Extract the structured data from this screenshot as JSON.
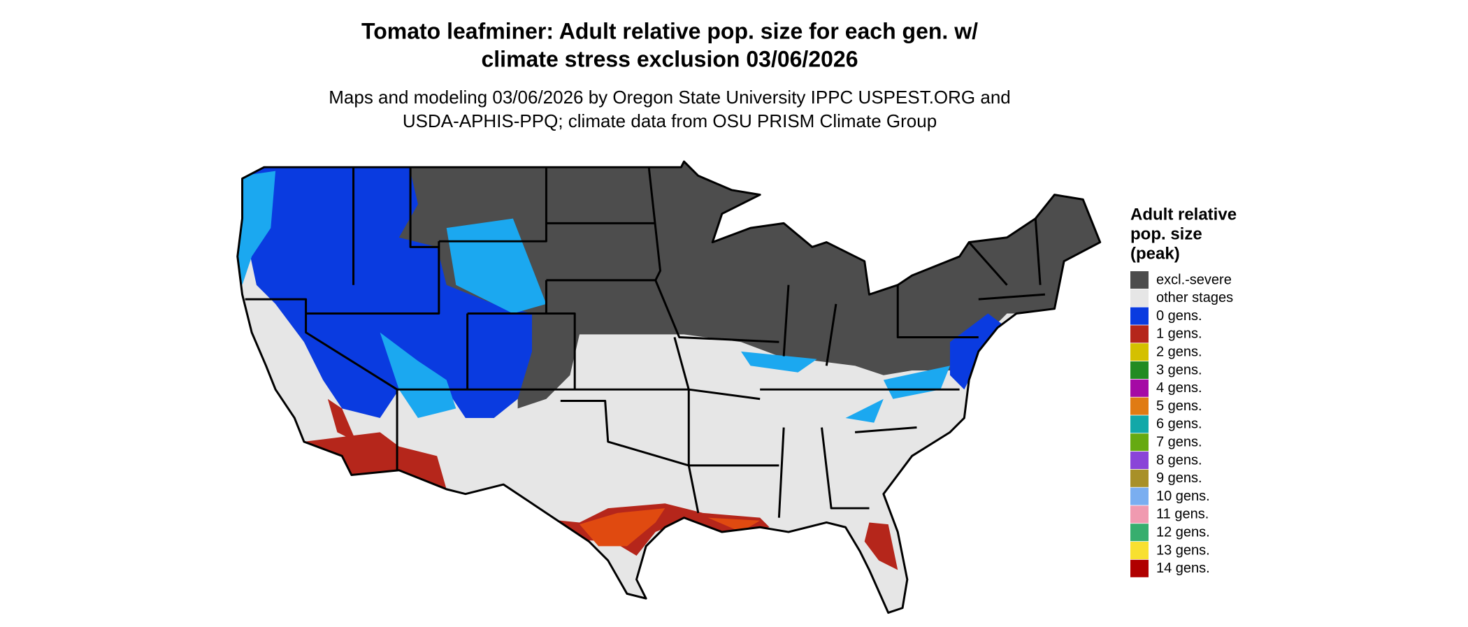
{
  "title": [
    "Tomato leafminer: Adult relative pop. size for each gen. w/",
    "climate stress exclusion 03/06/2026"
  ],
  "subtitle": [
    "Maps and modeling 03/06/2026 by Oregon State University IPPC USPEST.ORG and",
    "USDA-APHIS-PPQ; climate data from OSU PRISM Climate Group"
  ],
  "legend": {
    "title": [
      "Adult relative",
      "pop. size",
      "(peak)"
    ],
    "entries": [
      {
        "label": "excl.-severe",
        "color": "#4d4d4d"
      },
      {
        "label": "other stages",
        "color": "#e6e6e6"
      },
      {
        "label": "0 gens.",
        "color": "#0a3be0"
      },
      {
        "label": "1 gens.",
        "color": "#b5261b"
      },
      {
        "label": "2 gens.",
        "color": "#d4c000"
      },
      {
        "label": "3 gens.",
        "color": "#228b22"
      },
      {
        "label": "4 gens.",
        "color": "#a50aa5"
      },
      {
        "label": "5 gens.",
        "color": "#e07b13"
      },
      {
        "label": "6 gens.",
        "color": "#12a8a8"
      },
      {
        "label": "7 gens.",
        "color": "#66aa11"
      },
      {
        "label": "8 gens.",
        "color": "#8a44d8"
      },
      {
        "label": "9 gens.",
        "color": "#a89028"
      },
      {
        "label": "10 gens.",
        "color": "#7aaef0"
      },
      {
        "label": "11 gens.",
        "color": "#f09ab0"
      },
      {
        "label": "12 gens.",
        "color": "#37ae6e"
      },
      {
        "label": "13 gens.",
        "color": "#f8e030"
      },
      {
        "label": "14 gens.",
        "color": "#b00000"
      }
    ]
  }
}
